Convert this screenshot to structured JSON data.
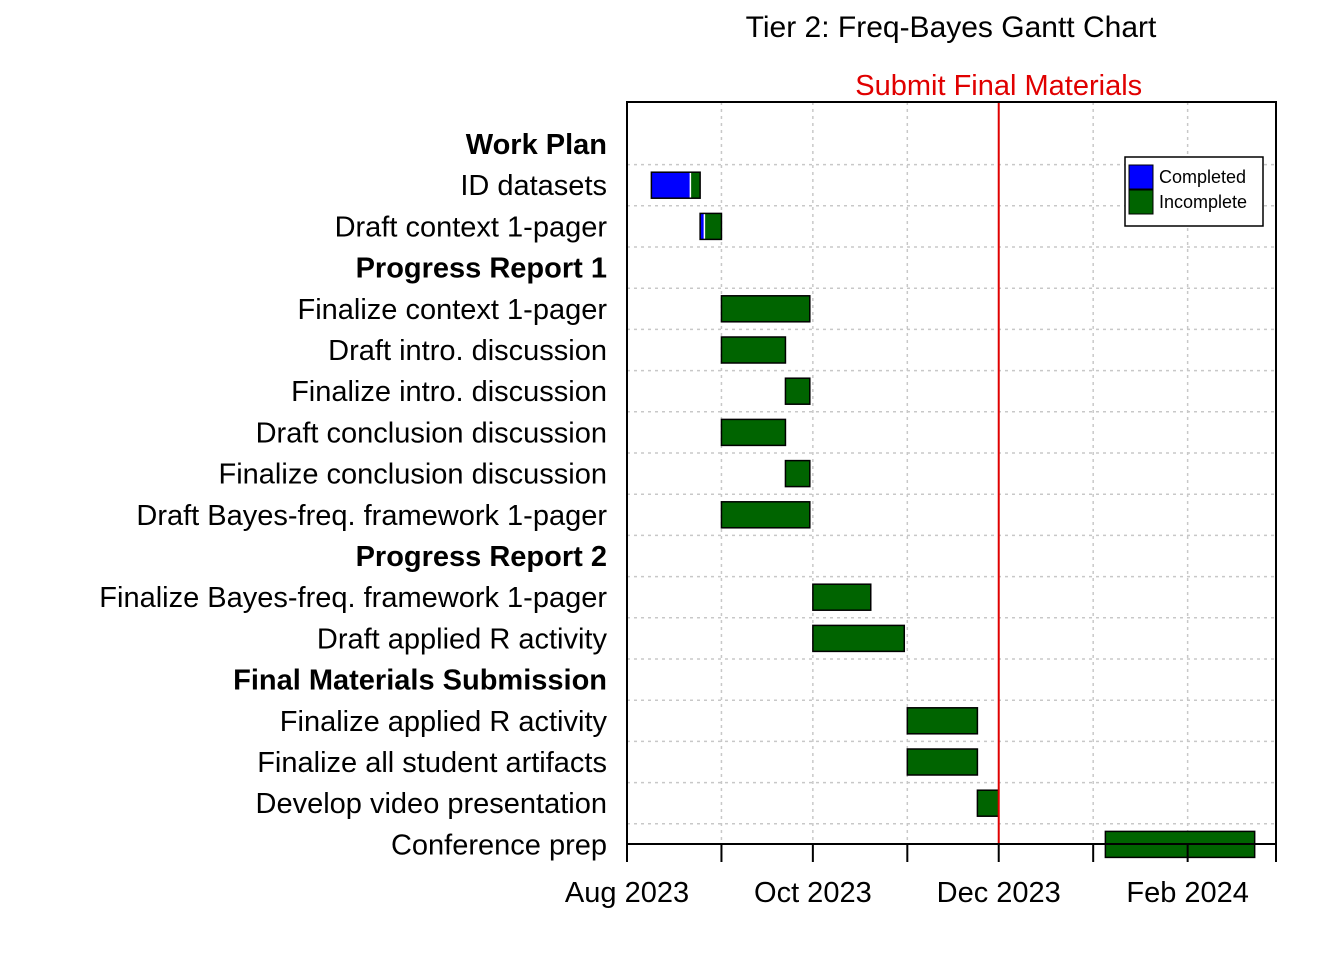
{
  "chart_data": {
    "type": "gantt",
    "title": "Tier 2: Freq-Bayes Gantt Chart",
    "colors": {
      "completed": "#0000ff",
      "incomplete": "#006400",
      "milestone_line": "#e00000"
    },
    "legend": {
      "placement": "top-right",
      "entries": [
        {
          "label": "Completed",
          "color": "#0000ff"
        },
        {
          "label": "Incomplete",
          "color": "#006400"
        }
      ]
    },
    "milestone": {
      "label": "Submit Final Materials",
      "date": "2023-12-01"
    },
    "xlim": [
      "2023-08-01",
      "2024-03-01"
    ],
    "x_ticks": [
      "2023-08-01",
      "2023-09-01",
      "2023-10-01",
      "2023-11-01",
      "2023-12-01",
      "2024-01-01",
      "2024-02-01",
      "2024-03-01"
    ],
    "x_tick_labels": [
      {
        "date": "2023-08-01",
        "label": "Aug 2023"
      },
      {
        "date": "2023-10-01",
        "label": "Oct 2023"
      },
      {
        "date": "2023-12-01",
        "label": "Dec 2023"
      },
      {
        "date": "2024-02-01",
        "label": "Feb 2024"
      }
    ],
    "grid": true,
    "tasks": [
      {
        "label": "Work Plan",
        "heading": true
      },
      {
        "label": "ID datasets",
        "start": "2023-08-09",
        "end": "2023-08-25",
        "completed": 0.8
      },
      {
        "label": "Draft context 1-pager",
        "start": "2023-08-25",
        "end": "2023-09-01",
        "completed": 0.2
      },
      {
        "label": "Progress Report 1",
        "heading": true
      },
      {
        "label": "Finalize context 1-pager",
        "start": "2023-09-01",
        "end": "2023-09-30",
        "completed": 0
      },
      {
        "label": "Draft intro. discussion",
        "start": "2023-09-01",
        "end": "2023-09-22",
        "completed": 0
      },
      {
        "label": "Finalize intro. discussion",
        "start": "2023-09-22",
        "end": "2023-09-30",
        "completed": 0
      },
      {
        "label": "Draft conclusion discussion",
        "start": "2023-09-01",
        "end": "2023-09-22",
        "completed": 0
      },
      {
        "label": "Finalize conclusion discussion",
        "start": "2023-09-22",
        "end": "2023-09-30",
        "completed": 0
      },
      {
        "label": "Draft Bayes-freq. framework 1-pager",
        "start": "2023-09-01",
        "end": "2023-09-30",
        "completed": 0
      },
      {
        "label": "Progress Report 2",
        "heading": true
      },
      {
        "label": "Finalize Bayes-freq. framework 1-pager",
        "start": "2023-10-01",
        "end": "2023-10-20",
        "completed": 0
      },
      {
        "label": "Draft applied R activity",
        "start": "2023-10-01",
        "end": "2023-10-31",
        "completed": 0
      },
      {
        "label": "Final Materials Submission",
        "heading": true
      },
      {
        "label": "Finalize applied R activity",
        "start": "2023-11-01",
        "end": "2023-11-24",
        "completed": 0
      },
      {
        "label": "Finalize all student artifacts",
        "start": "2023-11-01",
        "end": "2023-11-24",
        "completed": 0
      },
      {
        "label": "Develop video presentation",
        "start": "2023-11-24",
        "end": "2023-12-01",
        "completed": 0
      },
      {
        "label": "Conference prep",
        "start": "2024-01-05",
        "end": "2024-02-23",
        "completed": 0
      }
    ]
  }
}
